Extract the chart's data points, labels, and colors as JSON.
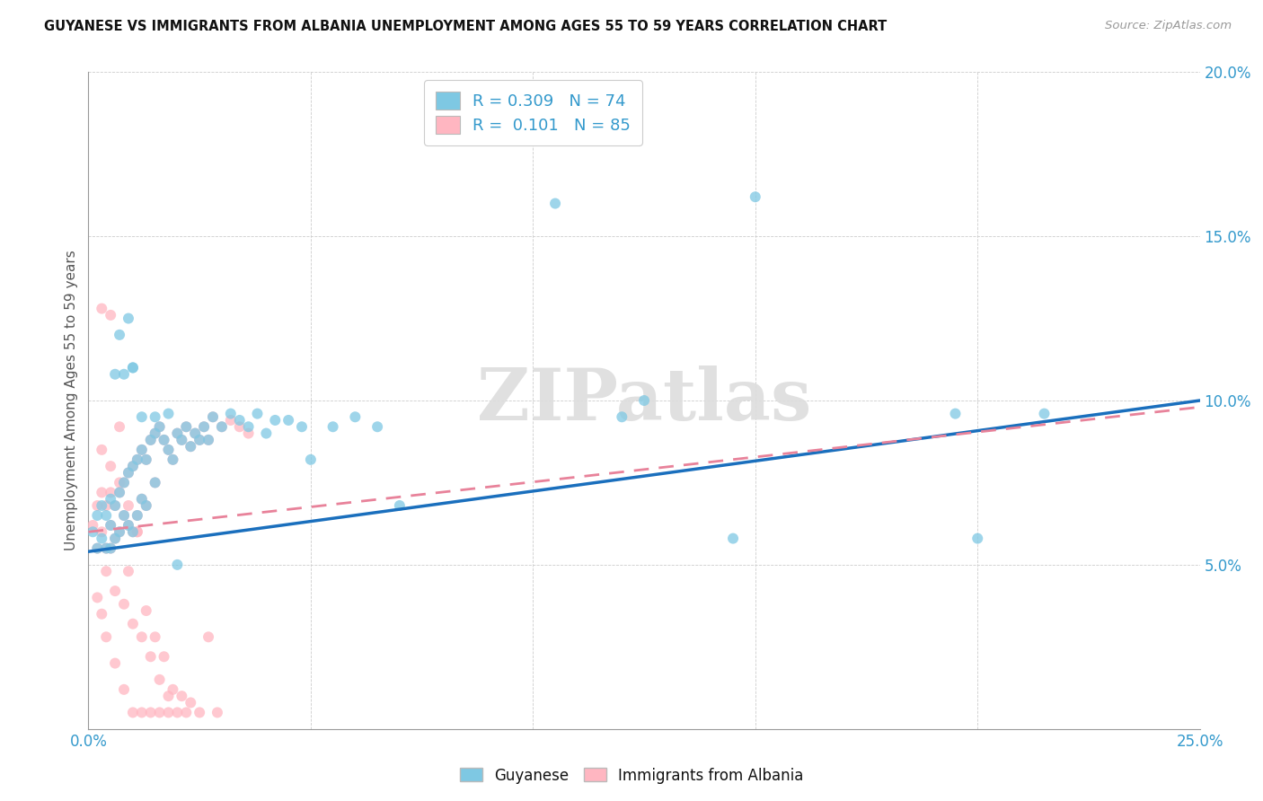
{
  "title": "GUYANESE VS IMMIGRANTS FROM ALBANIA UNEMPLOYMENT AMONG AGES 55 TO 59 YEARS CORRELATION CHART",
  "source": "Source: ZipAtlas.com",
  "ylabel": "Unemployment Among Ages 55 to 59 years",
  "xlim": [
    0.0,
    0.25
  ],
  "ylim": [
    0.0,
    0.2
  ],
  "xticks": [
    0.0,
    0.05,
    0.1,
    0.15,
    0.2,
    0.25
  ],
  "yticks": [
    0.0,
    0.05,
    0.1,
    0.15,
    0.2
  ],
  "xticklabels": [
    "0.0%",
    "",
    "",
    "",
    "",
    "25.0%"
  ],
  "yticklabels": [
    "",
    "5.0%",
    "10.0%",
    "15.0%",
    "20.0%"
  ],
  "color_guyanese": "#7ec8e3",
  "color_albania": "#ffb6c1",
  "legend_R_guyanese": "0.309",
  "legend_N_guyanese": "74",
  "legend_R_albania": "0.101",
  "legend_N_albania": "85",
  "trendline_guyanese_color": "#1a6fbd",
  "trendline_albania_color": "#e8829a",
  "trendline_guyanese_start": 0.054,
  "trendline_guyanese_end": 0.1,
  "trendline_albania_start": 0.06,
  "trendline_albania_end": 0.098,
  "watermark": "ZIPatlas",
  "guyanese_x": [
    0.001,
    0.002,
    0.002,
    0.003,
    0.003,
    0.004,
    0.004,
    0.005,
    0.005,
    0.005,
    0.006,
    0.006,
    0.007,
    0.007,
    0.008,
    0.008,
    0.009,
    0.009,
    0.01,
    0.01,
    0.011,
    0.011,
    0.012,
    0.012,
    0.013,
    0.013,
    0.014,
    0.015,
    0.015,
    0.016,
    0.017,
    0.018,
    0.019,
    0.02,
    0.021,
    0.022,
    0.023,
    0.024,
    0.025,
    0.026,
    0.027,
    0.028,
    0.03,
    0.032,
    0.034,
    0.036,
    0.038,
    0.04,
    0.042,
    0.045,
    0.048,
    0.05,
    0.055,
    0.06,
    0.065,
    0.07,
    0.12,
    0.145,
    0.15,
    0.195,
    0.2,
    0.215,
    0.125,
    0.105,
    0.007,
    0.009,
    0.01,
    0.006,
    0.008,
    0.01,
    0.012,
    0.015,
    0.018,
    0.02
  ],
  "guyanese_y": [
    0.06,
    0.065,
    0.055,
    0.068,
    0.058,
    0.065,
    0.055,
    0.07,
    0.062,
    0.055,
    0.068,
    0.058,
    0.072,
    0.06,
    0.075,
    0.065,
    0.078,
    0.062,
    0.08,
    0.06,
    0.082,
    0.065,
    0.085,
    0.07,
    0.082,
    0.068,
    0.088,
    0.09,
    0.075,
    0.092,
    0.088,
    0.085,
    0.082,
    0.09,
    0.088,
    0.092,
    0.086,
    0.09,
    0.088,
    0.092,
    0.088,
    0.095,
    0.092,
    0.096,
    0.094,
    0.092,
    0.096,
    0.09,
    0.094,
    0.094,
    0.092,
    0.082,
    0.092,
    0.095,
    0.092,
    0.068,
    0.095,
    0.058,
    0.162,
    0.096,
    0.058,
    0.096,
    0.1,
    0.16,
    0.12,
    0.125,
    0.11,
    0.108,
    0.108,
    0.11,
    0.095,
    0.095,
    0.096,
    0.05
  ],
  "albania_x": [
    0.001,
    0.002,
    0.002,
    0.003,
    0.003,
    0.004,
    0.004,
    0.005,
    0.005,
    0.005,
    0.006,
    0.006,
    0.007,
    0.007,
    0.008,
    0.008,
    0.009,
    0.009,
    0.01,
    0.01,
    0.011,
    0.011,
    0.012,
    0.012,
    0.013,
    0.013,
    0.014,
    0.015,
    0.015,
    0.016,
    0.017,
    0.018,
    0.019,
    0.02,
    0.021,
    0.022,
    0.023,
    0.024,
    0.025,
    0.026,
    0.027,
    0.028,
    0.03,
    0.032,
    0.034,
    0.036,
    0.003,
    0.005,
    0.007,
    0.009,
    0.011,
    0.013,
    0.015,
    0.017,
    0.019,
    0.021,
    0.023,
    0.025,
    0.027,
    0.029,
    0.004,
    0.006,
    0.008,
    0.01,
    0.012,
    0.014,
    0.016,
    0.018,
    0.02,
    0.022,
    0.002,
    0.003,
    0.004,
    0.006,
    0.008,
    0.01,
    0.012,
    0.014,
    0.016,
    0.018,
    0.003,
    0.005,
    0.007,
    0.009,
    0.011
  ],
  "albania_y": [
    0.062,
    0.068,
    0.055,
    0.072,
    0.06,
    0.068,
    0.055,
    0.072,
    0.062,
    0.055,
    0.068,
    0.058,
    0.072,
    0.06,
    0.075,
    0.065,
    0.078,
    0.062,
    0.08,
    0.06,
    0.082,
    0.065,
    0.085,
    0.07,
    0.082,
    0.068,
    0.088,
    0.09,
    0.075,
    0.092,
    0.088,
    0.085,
    0.082,
    0.09,
    0.088,
    0.092,
    0.086,
    0.09,
    0.088,
    0.092,
    0.088,
    0.095,
    0.092,
    0.094,
    0.092,
    0.09,
    0.128,
    0.126,
    0.092,
    0.048,
    0.06,
    0.036,
    0.028,
    0.022,
    0.012,
    0.01,
    0.008,
    0.005,
    0.028,
    0.005,
    0.048,
    0.042,
    0.038,
    0.032,
    0.028,
    0.022,
    0.015,
    0.01,
    0.005,
    0.005,
    0.04,
    0.035,
    0.028,
    0.02,
    0.012,
    0.005,
    0.005,
    0.005,
    0.005,
    0.005,
    0.085,
    0.08,
    0.075,
    0.068,
    0.06
  ]
}
